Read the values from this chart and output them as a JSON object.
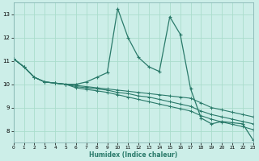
{
  "xlabel": "Humidex (Indice chaleur)",
  "bg_color": "#cceee8",
  "line_color": "#2a7a6a",
  "grid_color": "#aaddcc",
  "x_values": [
    0,
    1,
    2,
    3,
    4,
    5,
    6,
    7,
    8,
    9,
    10,
    11,
    12,
    13,
    14,
    15,
    16,
    17,
    18,
    19,
    20,
    21,
    22,
    23
  ],
  "series1": [
    11.1,
    10.75,
    10.3,
    10.1,
    10.05,
    10.0,
    10.0,
    10.1,
    10.3,
    10.5,
    13.25,
    12.0,
    11.15,
    10.75,
    10.55,
    12.9,
    12.15,
    9.8,
    8.55,
    8.3,
    8.4,
    8.35,
    8.3,
    7.6
  ],
  "series2": [
    11.1,
    10.75,
    10.3,
    10.1,
    10.05,
    10.0,
    9.95,
    9.9,
    9.85,
    9.8,
    9.75,
    9.7,
    9.65,
    9.6,
    9.55,
    9.5,
    9.45,
    9.4,
    9.2,
    9.0,
    8.9,
    8.8,
    8.7,
    8.6
  ],
  "series3": [
    11.1,
    10.75,
    10.3,
    10.1,
    10.05,
    10.0,
    9.9,
    9.85,
    9.8,
    9.75,
    9.65,
    9.6,
    9.5,
    9.45,
    9.35,
    9.25,
    9.15,
    9.05,
    8.85,
    8.7,
    8.6,
    8.5,
    8.4,
    8.3
  ],
  "series4": [
    11.1,
    10.75,
    10.3,
    10.1,
    10.05,
    10.0,
    9.85,
    9.78,
    9.72,
    9.65,
    9.55,
    9.45,
    9.35,
    9.25,
    9.15,
    9.05,
    8.95,
    8.85,
    8.65,
    8.5,
    8.38,
    8.28,
    8.18,
    8.05
  ],
  "xlim": [
    0,
    23
  ],
  "ylim": [
    7.5,
    13.5
  ],
  "yticks": [
    8,
    9,
    10,
    11,
    12,
    13
  ],
  "xticks": [
    0,
    1,
    2,
    3,
    4,
    5,
    6,
    7,
    8,
    9,
    10,
    11,
    12,
    13,
    14,
    15,
    16,
    17,
    18,
    19,
    20,
    21,
    22,
    23
  ]
}
